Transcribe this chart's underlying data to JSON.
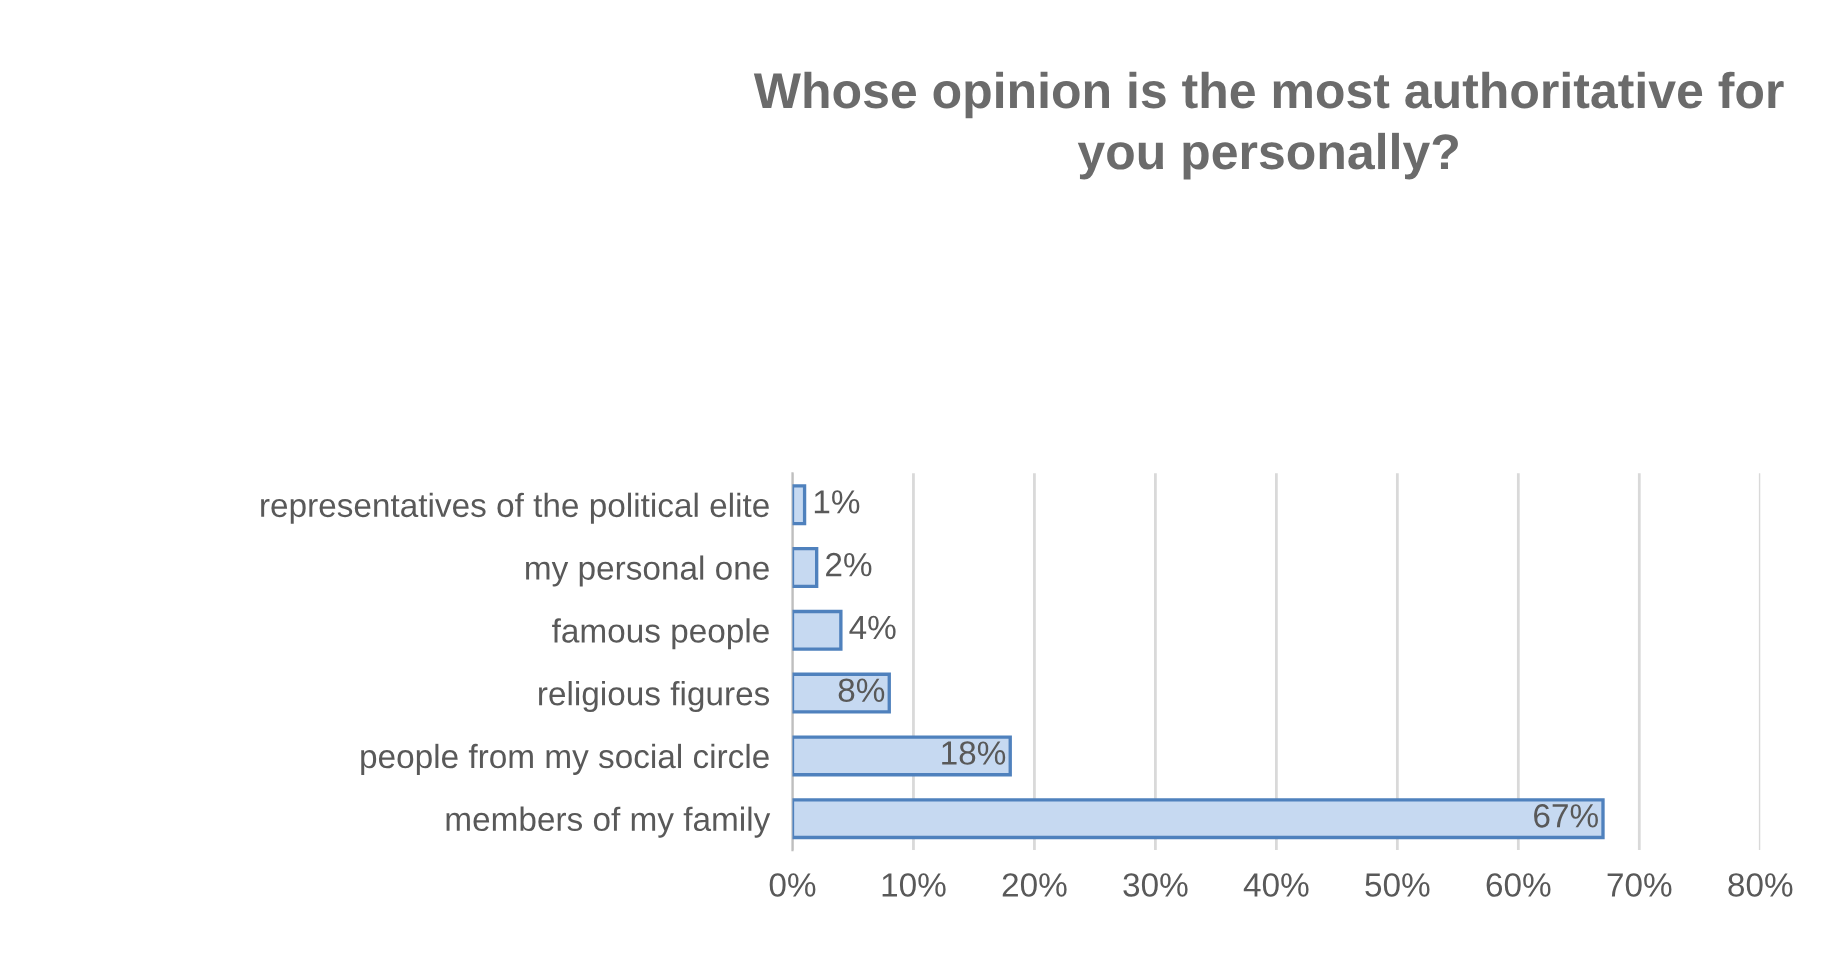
{
  "chart_data": {
    "type": "bar",
    "orientation": "horizontal",
    "title": "Whose opinion is the most authoritative for you personally?",
    "categories": [
      "representatives of the political elite",
      "my personal one",
      "famous people",
      "religious figures",
      "people from my social circle",
      "members of my family"
    ],
    "values": [
      1,
      2,
      4,
      8,
      18,
      67
    ],
    "value_labels": [
      "1%",
      "2%",
      "4%",
      "8%",
      "18%",
      "67%"
    ],
    "color": "#c6d9f1",
    "xlim": [
      0,
      80
    ],
    "xticks": [
      {
        "value": 0,
        "label": "0%"
      },
      {
        "value": 10,
        "label": "10%"
      },
      {
        "value": 20,
        "label": "20%"
      },
      {
        "value": 30,
        "label": "30%"
      },
      {
        "value": 40,
        "label": "40%"
      },
      {
        "value": 50,
        "label": "50%"
      },
      {
        "value": 60,
        "label": "60%"
      },
      {
        "value": 70,
        "label": "70%"
      },
      {
        "value": 80,
        "label": "80%"
      }
    ],
    "grid": "x",
    "legend": false
  }
}
